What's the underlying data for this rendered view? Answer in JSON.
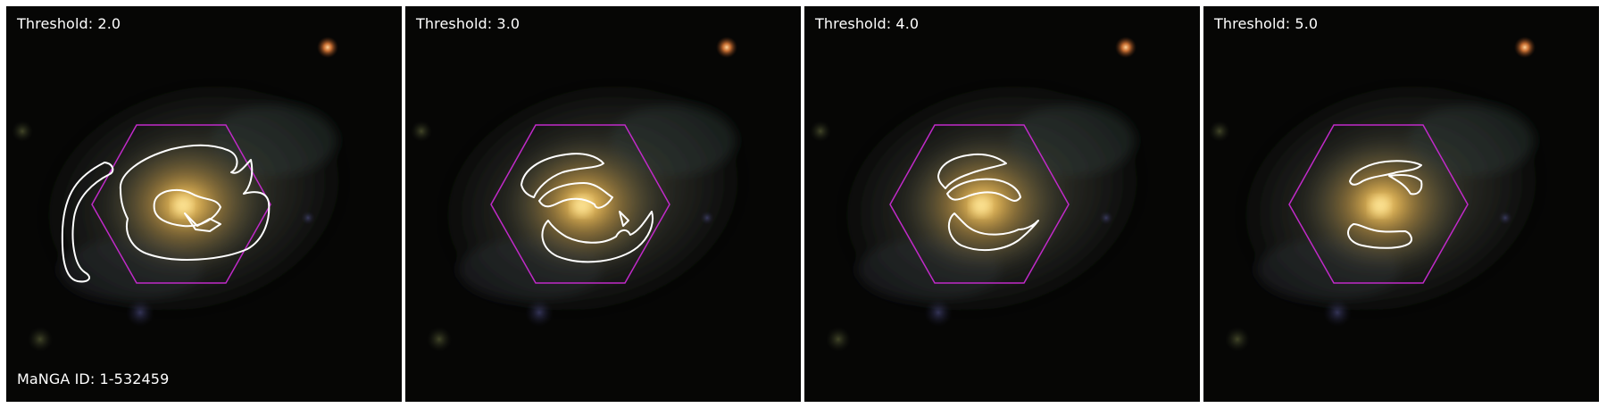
{
  "panels": [
    {
      "threshold_label": "Threshold: 2.0"
    },
    {
      "threshold_label": "Threshold: 3.0"
    },
    {
      "threshold_label": "Threshold: 4.0"
    },
    {
      "threshold_label": "Threshold: 5.0"
    }
  ],
  "galaxy_id_label": "MaNGA ID: 1-532459",
  "colors": {
    "hexagon": "#c02ac8",
    "contour": "#ffffff",
    "core": "#f4c463",
    "background": "#060605"
  },
  "icons": [
    "galaxy-image",
    "ifu-hexagon",
    "contour-overlay"
  ]
}
